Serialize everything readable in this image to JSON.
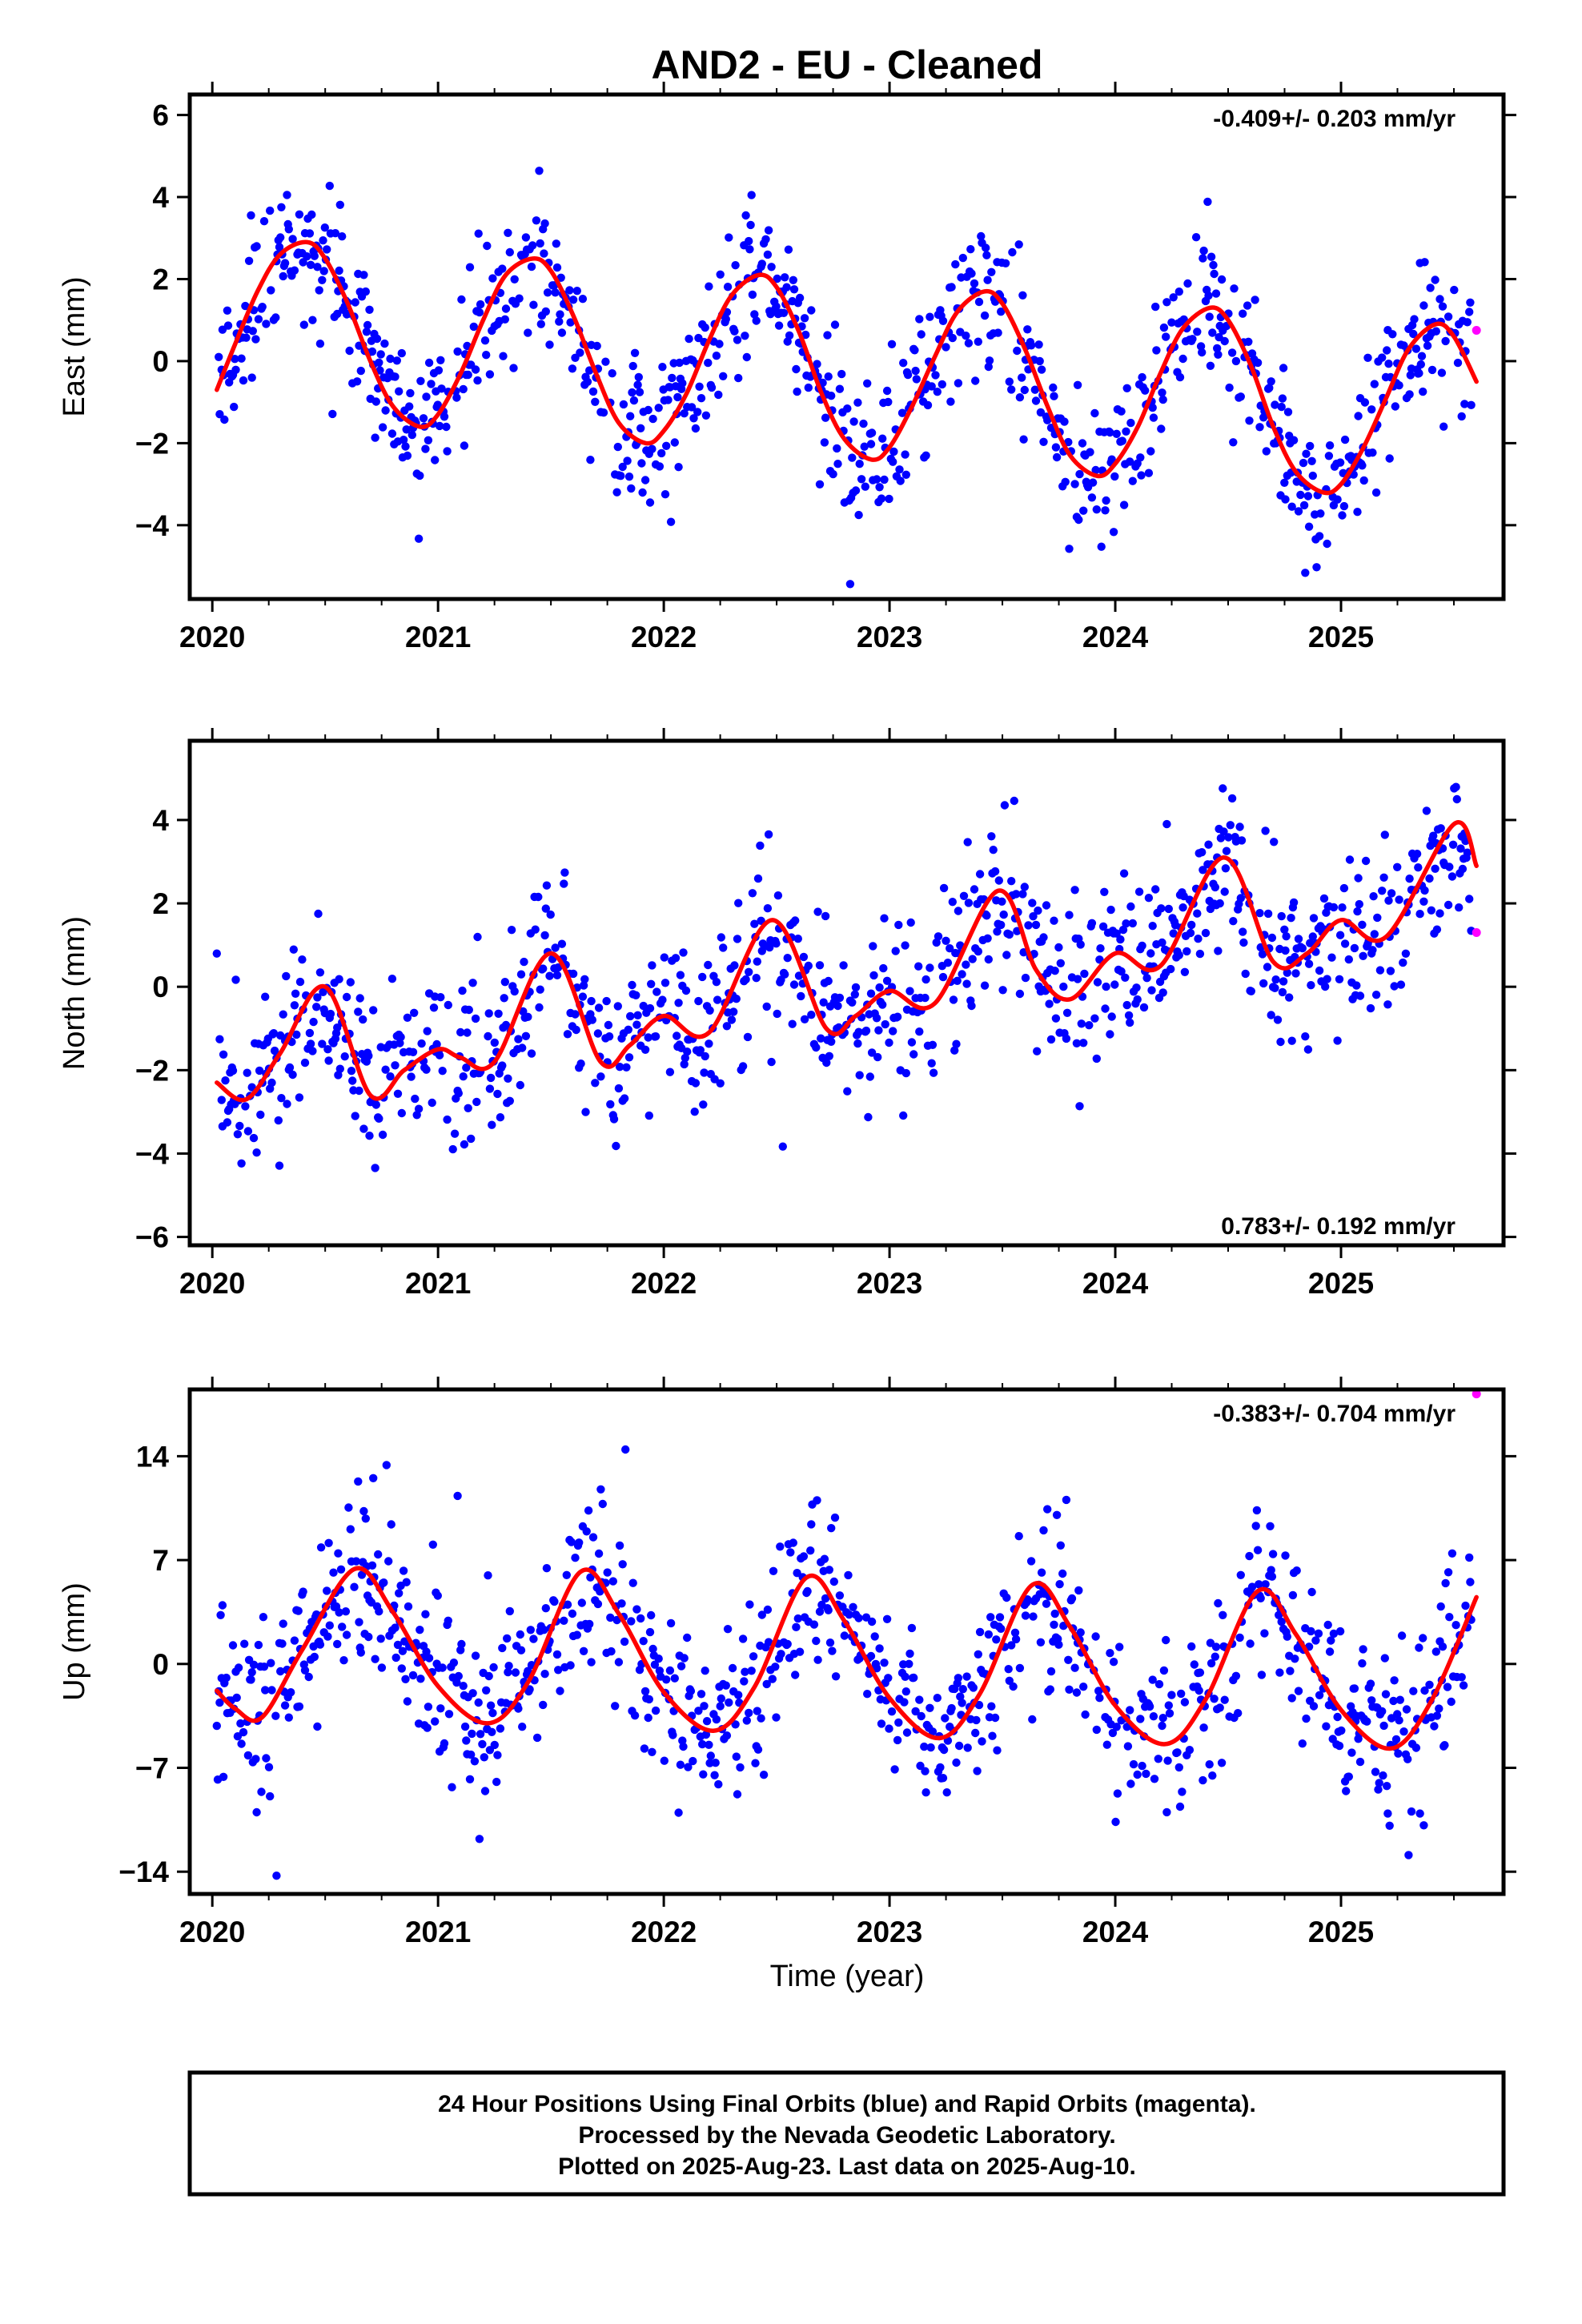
{
  "title": "AND2  - EU - Cleaned",
  "xlabel": "Time (year)",
  "colors": {
    "final": "#0000ff",
    "rapid": "#ff00ff",
    "fit": "#ff0000",
    "axis": "#000000"
  },
  "footer": {
    "lines": [
      "24 Hour Positions Using Final Orbits (blue) and Rapid Orbits (magenta).",
      "Processed by the Nevada Geodetic Laboratory.",
      "Plotted on 2025-Aug-23. Last data on 2025-Aug-10."
    ]
  },
  "chart_data": [
    {
      "type": "scatter",
      "component": "east",
      "ylabel": "East (mm)",
      "rate_text": "-0.409+/- 0.203 mm/yr",
      "rate_position": "top-right",
      "xlim": [
        2019.9,
        2025.72
      ],
      "ylim": [
        -5.8,
        6.5
      ],
      "x_ticks": [
        2020,
        2021,
        2022,
        2023,
        2024,
        2025
      ],
      "x_tick_labels": [
        "2020",
        "2021",
        "2022",
        "2023",
        "2024",
        "2025"
      ],
      "y_ticks": [
        -4,
        -2,
        0,
        2,
        4,
        6
      ],
      "y_tick_labels": [
        "−4",
        "−2",
        "0",
        "2",
        "4",
        "6"
      ],
      "seasonal_fit": {
        "x": [
          2020.02,
          2020.1,
          2020.2,
          2020.3,
          2020.42,
          2020.5,
          2020.6,
          2020.7,
          2020.8,
          2020.92,
          2021.0,
          2021.1,
          2021.2,
          2021.3,
          2021.42,
          2021.5,
          2021.6,
          2021.7,
          2021.8,
          2021.92,
          2022.0,
          2022.1,
          2022.2,
          2022.3,
          2022.42,
          2022.5,
          2022.6,
          2022.7,
          2022.8,
          2022.92,
          2023.0,
          2023.1,
          2023.2,
          2023.3,
          2023.42,
          2023.5,
          2023.6,
          2023.7,
          2023.8,
          2023.92,
          2024.0,
          2024.1,
          2024.2,
          2024.3,
          2024.42,
          2024.5,
          2024.6,
          2024.7,
          2024.8,
          2024.92,
          2025.0,
          2025.1,
          2025.2,
          2025.3,
          2025.42,
          2025.5,
          2025.6
        ],
        "y": [
          -0.7,
          0.4,
          1.7,
          2.6,
          2.9,
          2.5,
          1.4,
          0.0,
          -1.1,
          -1.6,
          -1.3,
          -0.3,
          1.0,
          2.1,
          2.5,
          2.2,
          1.1,
          -0.3,
          -1.5,
          -2.0,
          -1.7,
          -0.8,
          0.5,
          1.6,
          2.1,
          1.8,
          0.7,
          -0.8,
          -1.9,
          -2.4,
          -2.1,
          -1.1,
          0.1,
          1.2,
          1.7,
          1.4,
          0.3,
          -1.1,
          -2.3,
          -2.8,
          -2.5,
          -1.6,
          -0.3,
          0.8,
          1.3,
          1.0,
          -0.1,
          -1.6,
          -2.7,
          -3.2,
          -3.0,
          -2.1,
          -0.9,
          0.3,
          0.9,
          0.6,
          -0.5
        ]
      },
      "final_amplitude": 2.3,
      "final_offset": -0.15,
      "final_trend": -0.409,
      "final_scatter": 0.85,
      "final_phase_peak": 0.42,
      "rapid_points": [
        {
          "x": 2025.6,
          "y": 0.75
        }
      ]
    },
    {
      "type": "scatter",
      "component": "north",
      "ylabel": "North (mm)",
      "rate_text": "0.783+/- 0.192 mm/yr",
      "rate_position": "bottom-right",
      "xlim": [
        2019.9,
        2025.72
      ],
      "ylim": [
        -6.2,
        5.9
      ],
      "x_ticks": [
        2020,
        2021,
        2022,
        2023,
        2024,
        2025
      ],
      "x_tick_labels": [
        "2020",
        "2021",
        "2022",
        "2023",
        "2024",
        "2025"
      ],
      "y_ticks": [
        -6,
        -4,
        -2,
        0,
        2,
        4
      ],
      "y_tick_labels": [
        "−6",
        "−4",
        "−2",
        "0",
        "2",
        "4"
      ],
      "seasonal_fit": {
        "x": [
          2020.02,
          2020.15,
          2020.3,
          2020.5,
          2020.7,
          2020.85,
          2021.0,
          2021.1,
          2021.25,
          2021.5,
          2021.72,
          2021.85,
          2022.0,
          2022.2,
          2022.48,
          2022.72,
          2022.85,
          2023.0,
          2023.2,
          2023.48,
          2023.65,
          2023.8,
          2024.0,
          2024.2,
          2024.48,
          2024.7,
          2024.85,
          2025.0,
          2025.2,
          2025.5,
          2025.6
        ],
        "y": [
          -2.3,
          -2.7,
          -1.6,
          0.0,
          -2.6,
          -2.0,
          -1.5,
          -1.7,
          -1.8,
          0.8,
          -1.8,
          -1.4,
          -0.7,
          -1.1,
          1.6,
          -1.0,
          -0.7,
          -0.1,
          -0.4,
          2.3,
          0.4,
          -0.3,
          0.8,
          0.5,
          3.1,
          0.6,
          0.8,
          1.6,
          1.2,
          3.9,
          2.9
        ]
      },
      "final_scatter": 1.0,
      "rapid_points": [
        {
          "x": 2025.6,
          "y": 1.3
        }
      ]
    },
    {
      "type": "scatter",
      "component": "up",
      "ylabel": "Up (mm)",
      "rate_text": "-0.383+/- 0.704 mm/yr",
      "rate_position": "top-right",
      "xlim": [
        2019.9,
        2025.72
      ],
      "ylim": [
        -15.5,
        18.5
      ],
      "x_ticks": [
        2020,
        2021,
        2022,
        2023,
        2024,
        2025
      ],
      "x_tick_labels": [
        "2020",
        "2021",
        "2022",
        "2023",
        "2024",
        "2025"
      ],
      "y_ticks": [
        -14,
        -7,
        0,
        7,
        14
      ],
      "y_tick_labels": [
        "−14",
        "−7",
        "0",
        "7",
        "14"
      ],
      "seasonal_fit": {
        "x": [
          2020.02,
          2020.1,
          2020.22,
          2020.4,
          2020.63,
          2020.8,
          2021.0,
          2021.22,
          2021.4,
          2021.63,
          2021.8,
          2022.0,
          2022.22,
          2022.4,
          2022.63,
          2022.8,
          2023.0,
          2023.22,
          2023.4,
          2023.63,
          2023.8,
          2024.0,
          2024.22,
          2024.4,
          2024.63,
          2024.8,
          2025.0,
          2025.22,
          2025.4,
          2025.6
        ],
        "y": [
          -1.8,
          -3.0,
          -3.6,
          1.0,
          6.4,
          3.5,
          -1.5,
          -4.0,
          -1.2,
          6.2,
          3.4,
          -1.9,
          -4.5,
          -1.6,
          5.8,
          2.9,
          -2.3,
          -5.0,
          -2.0,
          5.3,
          2.5,
          -2.8,
          -5.4,
          -2.4,
          4.9,
          2.0,
          -3.1,
          -5.7,
          -2.5,
          4.5
        ]
      },
      "final_amplitude": 5.9,
      "final_offset": 0.4,
      "final_trend": -0.383,
      "final_scatter": 2.9,
      "final_phase_peak": 0.63,
      "rapid_points": [
        {
          "x": 2025.6,
          "y": 18.2
        }
      ]
    }
  ]
}
